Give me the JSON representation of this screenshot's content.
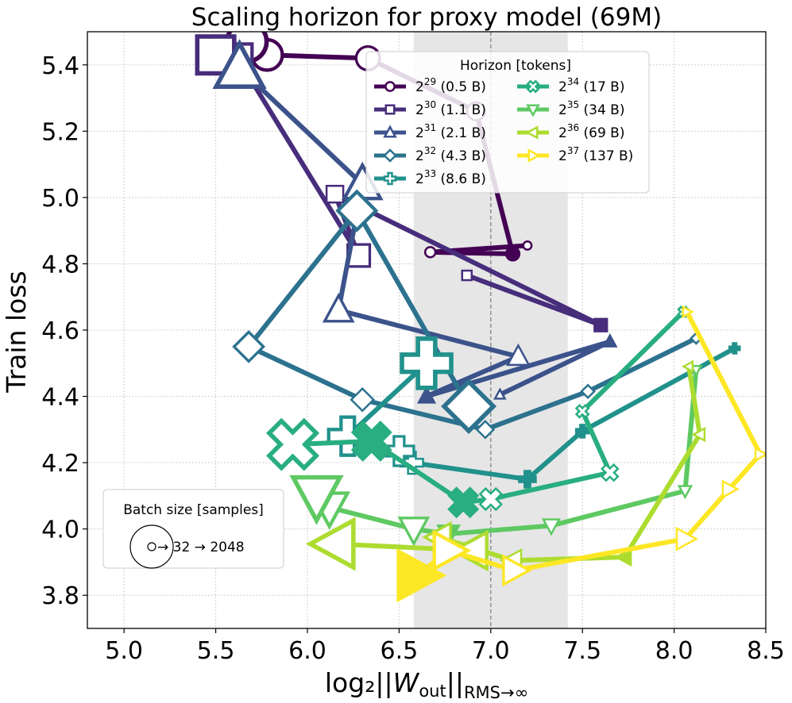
{
  "chart_data": {
    "type": "line",
    "title": "Scaling horizon for proxy model (69M)",
    "xlabel": "log₂||W_out||_RMS→∞",
    "ylabel": "Train loss",
    "xlim": [
      4.8,
      8.5
    ],
    "ylim": [
      3.7,
      5.5
    ],
    "xticks": [
      "5.0",
      "5.5",
      "6.0",
      "6.5",
      "7.0",
      "7.5",
      "8.0",
      "8.5"
    ],
    "yticks": [
      "3.8",
      "4.0",
      "4.2",
      "4.4",
      "4.6",
      "4.8",
      "5.0",
      "5.2",
      "5.4"
    ],
    "grid": true,
    "shaded_band_x": [
      6.58,
      7.42
    ],
    "vertical_line_x": 7.0,
    "legend": {
      "title": "Horizon [tokens]",
      "placement": "top-right",
      "entries": [
        {
          "base": "2",
          "exp": "29",
          "suffix": " (0.5 B)"
        },
        {
          "base": "2",
          "exp": "30",
          "suffix": " (1.1 B)"
        },
        {
          "base": "2",
          "exp": "31",
          "suffix": " (2.1 B)"
        },
        {
          "base": "2",
          "exp": "32",
          "suffix": " (4.3 B)"
        },
        {
          "base": "2",
          "exp": "33",
          "suffix": " (8.6 B)"
        },
        {
          "base": "2",
          "exp": "34",
          "suffix": " (17 B)"
        },
        {
          "base": "2",
          "exp": "35",
          "suffix": " (34 B)"
        },
        {
          "base": "2",
          "exp": "36",
          "suffix": " (69 B)"
        },
        {
          "base": "2",
          "exp": "37",
          "suffix": " (137 B)"
        }
      ]
    },
    "size_legend": {
      "title": "Batch size [samples]",
      "label": "32 → 2048",
      "placement": "bottom-left"
    },
    "batch_sizes": [
      32,
      64,
      128,
      256,
      512,
      1024,
      2048
    ],
    "series": [
      {
        "name": "2^29 (0.5 B)",
        "color": "#440154",
        "marker": "circle",
        "x": [
          7.2,
          6.67,
          7.12,
          6.92,
          6.33,
          5.78,
          5.67
        ],
        "y": [
          4.855,
          4.835,
          4.83,
          5.26,
          5.42,
          5.43,
          5.47
        ]
      },
      {
        "name": "2^30 (1.1 B)",
        "color": "#472d7b",
        "marker": "square",
        "x": [
          7.6,
          6.87,
          7.6,
          6.15,
          6.28,
          5.62,
          5.5
        ],
        "y": [
          4.615,
          4.765,
          4.615,
          5.01,
          4.825,
          5.42,
          5.43
        ]
      },
      {
        "name": "2^31 (2.1 B)",
        "color": "#3b528b",
        "marker": "triangle-up",
        "x": [
          7.05,
          7.65,
          6.65,
          7.15,
          6.17,
          6.3,
          5.63
        ],
        "y": [
          4.405,
          4.565,
          4.4,
          4.52,
          4.66,
          5.04,
          5.39
        ]
      },
      {
        "name": "2^32 (4.3 B)",
        "color": "#2c728e",
        "marker": "diamond",
        "x": [
          8.12,
          7.53,
          6.97,
          6.3,
          5.68,
          6.27,
          6.88
        ],
        "y": [
          4.575,
          4.415,
          4.3,
          4.39,
          4.55,
          4.96,
          4.37
        ]
      },
      {
        "name": "2^33 (8.6 B)",
        "color": "#21918c",
        "marker": "plus",
        "x": [
          8.33,
          7.5,
          7.2,
          6.57,
          6.5,
          6.22,
          6.65
        ],
        "y": [
          4.545,
          4.295,
          4.15,
          4.2,
          4.235,
          4.28,
          4.5
        ]
      },
      {
        "name": "2^34 (17 B)",
        "color": "#28ae80",
        "marker": "x",
        "x": [
          8.05,
          7.5,
          7.65,
          7.0,
          6.85,
          6.35,
          5.92
        ],
        "y": [
          4.655,
          4.355,
          4.17,
          4.09,
          4.08,
          4.265,
          4.255
        ]
      },
      {
        "name": "2^35 (34 B)",
        "color": "#5ec962",
        "marker": "triangle-down",
        "x": [
          8.12,
          8.06,
          7.33,
          6.77,
          6.58,
          6.12,
          6.05
        ],
        "y": [
          4.48,
          4.115,
          4.01,
          3.985,
          4.0,
          4.065,
          4.1
        ]
      },
      {
        "name": "2^36 (69 B)",
        "color": "#addc30",
        "marker": "triangle-left",
        "x": [
          8.08,
          8.14,
          7.73,
          7.12,
          6.72,
          6.9,
          6.15
        ],
        "y": [
          4.49,
          4.285,
          3.915,
          3.905,
          3.975,
          3.935,
          3.955
        ]
      },
      {
        "name": "2^37 (137 B)",
        "color": "#fde725",
        "marker": "triangle-right",
        "x": [
          8.07,
          8.47,
          8.3,
          8.06,
          7.13,
          6.77,
          6.6
        ],
        "y": [
          4.655,
          4.225,
          4.12,
          3.97,
          3.875,
          3.935,
          3.86
        ]
      }
    ],
    "markers": {
      "2^29 (0.5 B)": [
        "open",
        "open",
        "filled",
        "open",
        "open",
        "open",
        "open"
      ],
      "2^30 (1.1 B)": [
        "open",
        "open",
        "filled",
        "open",
        "open",
        "open",
        "open"
      ],
      "2^31 (2.1 B)": [
        "open",
        "filled",
        "filled",
        "open",
        "open",
        "open",
        "open"
      ],
      "2^32 (4.3 B)": [
        "open",
        "open",
        "open",
        "open",
        "open",
        "open",
        "open"
      ],
      "2^33 (8.6 B)": [
        "filled",
        "filled",
        "filled",
        "open",
        "open",
        "open",
        "open"
      ],
      "2^34 (17 B)": [
        "open",
        "open",
        "open",
        "open",
        "filled",
        "filled",
        "open"
      ],
      "2^35 (34 B)": [
        "open",
        "open",
        "open",
        "filled",
        "open",
        "open",
        "open"
      ],
      "2^36 (69 B)": [
        "open",
        "open",
        "filled",
        "open",
        "open",
        "open",
        "open"
      ],
      "2^37 (137 B)": [
        "open",
        "open",
        "open",
        "open",
        "open",
        "open",
        "filled"
      ]
    }
  }
}
